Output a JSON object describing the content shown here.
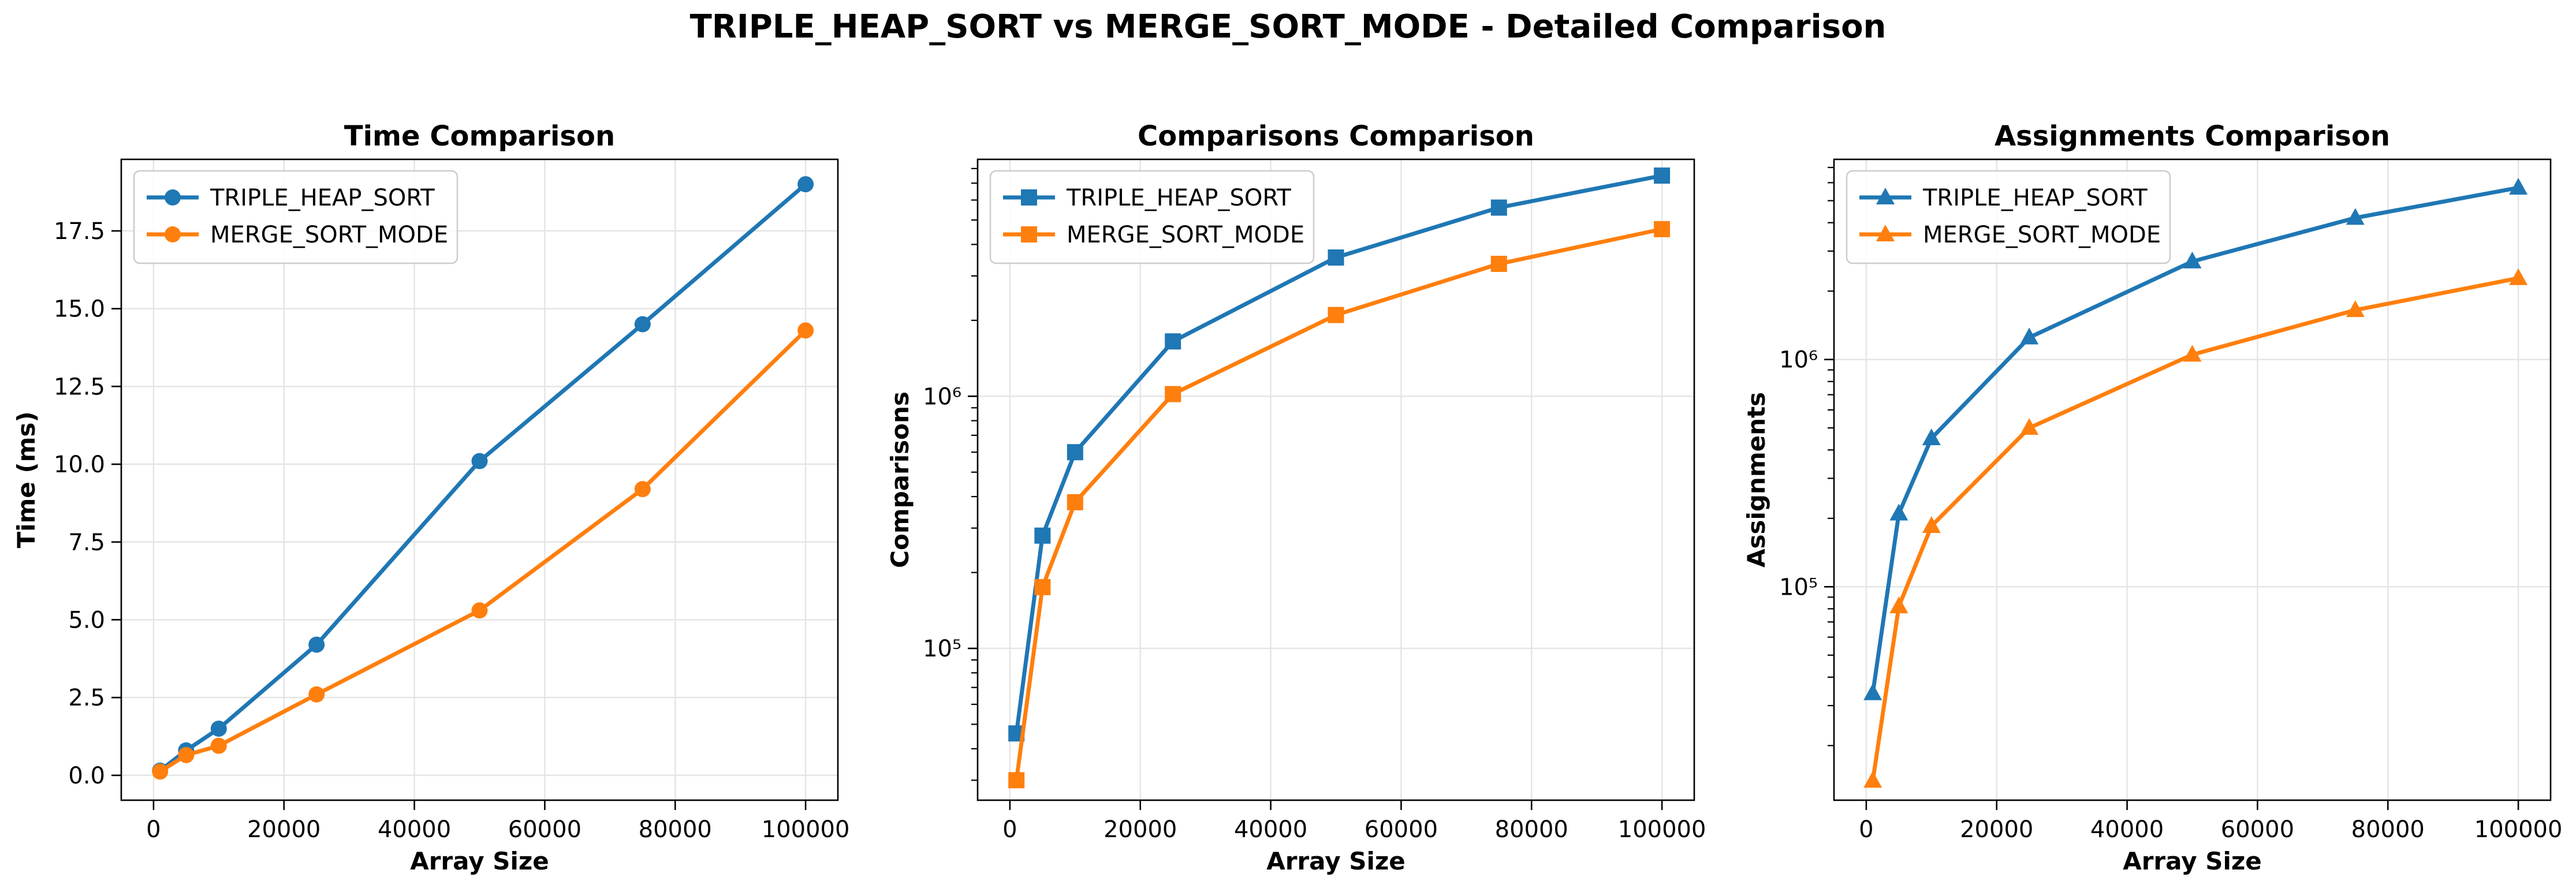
{
  "suptitle": "TRIPLE_HEAP_SORT vs MERGE_SORT_MODE - Detailed Comparison",
  "colors": {
    "series1": "#1f77b4",
    "series2": "#ff7f0e",
    "grid": "#e5e5e5",
    "axis": "#000000"
  },
  "chart_data": [
    {
      "type": "line",
      "title": "Time Comparison",
      "xlabel": "Array Size",
      "ylabel": "Time (ms)",
      "yscale": "linear",
      "xlim": [
        -4950,
        104950
      ],
      "ylim": [
        -0.8,
        19.8
      ],
      "xticks": [
        0,
        20000,
        40000,
        60000,
        80000,
        100000
      ],
      "xtick_labels": [
        "0",
        "20000",
        "40000",
        "60000",
        "80000",
        "100000"
      ],
      "yticks": [
        0,
        2.5,
        5,
        7.5,
        10,
        12.5,
        15,
        17.5
      ],
      "ytick_labels": [
        "0.0",
        "2.5",
        "5.0",
        "7.5",
        "10.0",
        "12.5",
        "15.0",
        "17.5"
      ],
      "grid": true,
      "legend": "upper-left",
      "marker": "circle",
      "x": [
        1000,
        5000,
        10000,
        25000,
        50000,
        75000,
        100000
      ],
      "series": [
        {
          "name": "TRIPLE_HEAP_SORT",
          "color": "#1f77b4",
          "values": [
            0.15,
            0.8,
            1.5,
            4.2,
            10.1,
            14.5,
            19.0
          ]
        },
        {
          "name": "MERGE_SORT_MODE",
          "color": "#ff7f0e",
          "values": [
            0.12,
            0.65,
            0.95,
            2.6,
            5.3,
            9.2,
            14.3
          ]
        }
      ]
    },
    {
      "type": "line",
      "title": "Comparisons Comparison",
      "xlabel": "Array Size",
      "ylabel": "Comparisons",
      "yscale": "log",
      "xlim": [
        -4950,
        104950
      ],
      "ylim": [
        25000,
        8700000
      ],
      "xticks": [
        0,
        20000,
        40000,
        60000,
        80000,
        100000
      ],
      "xtick_labels": [
        "0",
        "20000",
        "40000",
        "60000",
        "80000",
        "100000"
      ],
      "yticks": [
        100000,
        1000000
      ],
      "ytick_labels": [
        "10⁵",
        "10⁶"
      ],
      "grid": true,
      "legend": "upper-left",
      "marker": "square",
      "x": [
        1000,
        5000,
        10000,
        25000,
        50000,
        75000,
        100000
      ],
      "series": [
        {
          "name": "TRIPLE_HEAP_SORT",
          "color": "#1f77b4",
          "values": [
            46000,
            280000,
            600000,
            1650000,
            3550000,
            5600000,
            7500000
          ]
        },
        {
          "name": "MERGE_SORT_MODE",
          "color": "#ff7f0e",
          "values": [
            30000,
            175000,
            380000,
            1020000,
            2100000,
            3350000,
            4600000
          ]
        }
      ]
    },
    {
      "type": "line",
      "title": "Assignments Comparison",
      "xlabel": "Array Size",
      "ylabel": "Assignments",
      "yscale": "log",
      "xlim": [
        -4950,
        104950
      ],
      "ylim": [
        11500,
        7600000
      ],
      "xticks": [
        0,
        20000,
        40000,
        60000,
        80000,
        100000
      ],
      "xtick_labels": [
        "0",
        "20000",
        "40000",
        "60000",
        "80000",
        "100000"
      ],
      "yticks": [
        100000,
        1000000
      ],
      "ytick_labels": [
        "10⁵",
        "10⁶"
      ],
      "grid": true,
      "legend": "upper-left",
      "marker": "triangle",
      "x": [
        1000,
        5000,
        10000,
        25000,
        50000,
        75000,
        100000
      ],
      "series": [
        {
          "name": "TRIPLE_HEAP_SORT",
          "color": "#1f77b4",
          "values": [
            34000,
            210000,
            450000,
            1250000,
            2700000,
            4200000,
            5700000
          ]
        },
        {
          "name": "MERGE_SORT_MODE",
          "color": "#ff7f0e",
          "values": [
            14000,
            82000,
            185000,
            500000,
            1050000,
            1650000,
            2280000
          ]
        }
      ]
    }
  ]
}
